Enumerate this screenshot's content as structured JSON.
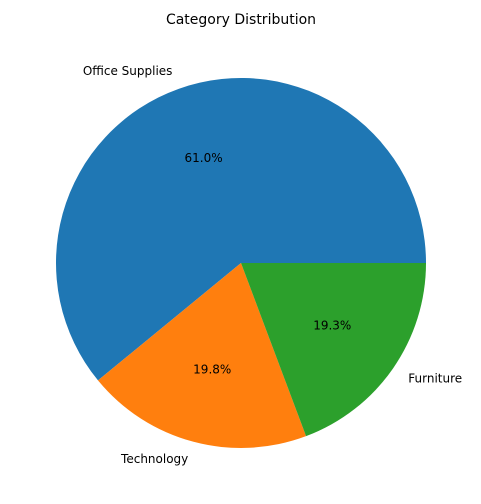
{
  "chart_data": {
    "type": "pie",
    "title": "Category Distribution",
    "categories": [
      "Office Supplies",
      "Technology",
      "Furniture"
    ],
    "values": [
      61.0,
      19.8,
      19.3
    ],
    "value_labels": [
      "61.0%",
      "19.8%",
      "19.3%"
    ],
    "colors": [
      "#1f77b4",
      "#ff7f0e",
      "#2ca02c"
    ],
    "start_angle_deg": 0,
    "direction": "counterclockwise",
    "legend": "none"
  }
}
